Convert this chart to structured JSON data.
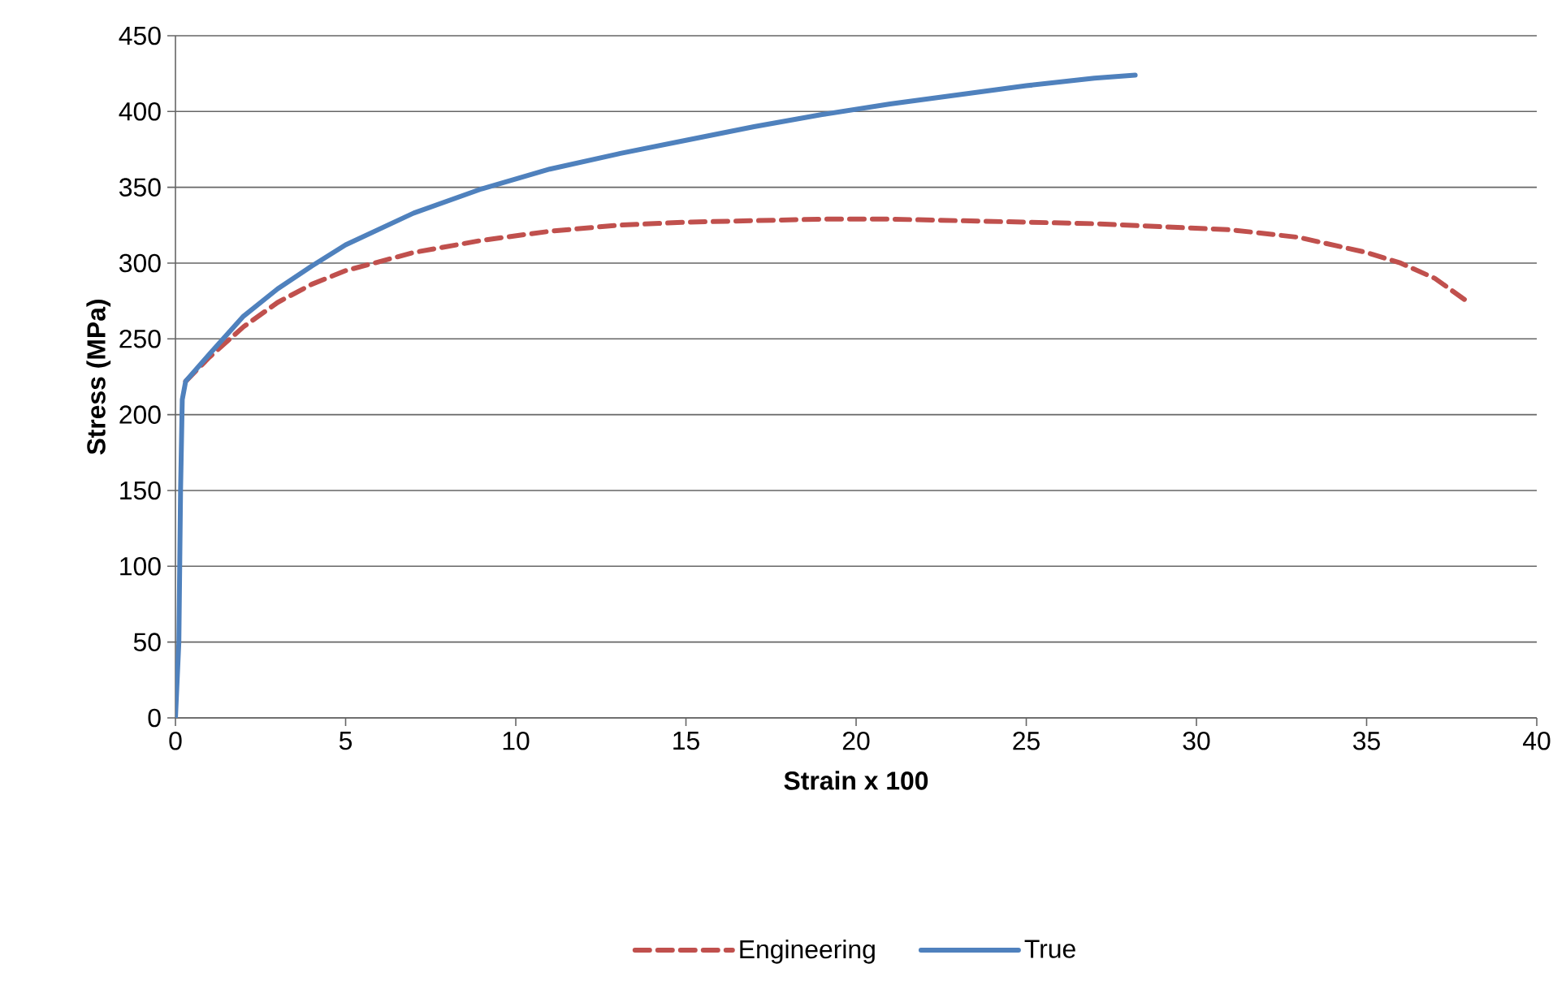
{
  "chart_data": {
    "type": "line",
    "xlabel": "Strain x 100",
    "ylabel": "Stress (MPa)",
    "xlim": [
      0,
      40
    ],
    "xticks": [
      0,
      5,
      10,
      15,
      20,
      25,
      30,
      35,
      40
    ],
    "ylim": [
      0,
      450
    ],
    "yticks": [
      0,
      50,
      100,
      150,
      200,
      250,
      300,
      350,
      400,
      450
    ],
    "grid": "y",
    "legend": "bottom",
    "marker": "none",
    "series": [
      {
        "name": "Engineering",
        "color": "#c0504d",
        "line_style": "dashed",
        "x": [
          0.3,
          1,
          2,
          3,
          4,
          5,
          7,
          9,
          11,
          13,
          15,
          17,
          19,
          21,
          23,
          25,
          27,
          29,
          31,
          33,
          35,
          36,
          37,
          38
        ],
        "values": [
          222,
          238,
          258,
          274,
          286,
          295,
          307,
          315,
          321,
          325,
          327,
          328,
          329,
          329,
          328,
          327,
          326,
          324,
          322,
          317,
          307,
          300,
          290,
          274
        ]
      },
      {
        "name": "True",
        "color": "#4f81bd",
        "line_style": "solid",
        "x": [
          0,
          0.1,
          0.15,
          0.2,
          0.3,
          1,
          2,
          3,
          4,
          5,
          7,
          9,
          11,
          13,
          15,
          17,
          19,
          21,
          23,
          25,
          27,
          28.2
        ],
        "values": [
          0,
          50,
          150,
          210,
          222,
          240,
          265,
          283,
          298,
          312,
          333,
          349,
          362,
          372,
          381,
          390,
          398,
          405,
          411,
          417,
          422,
          424
        ]
      }
    ]
  }
}
